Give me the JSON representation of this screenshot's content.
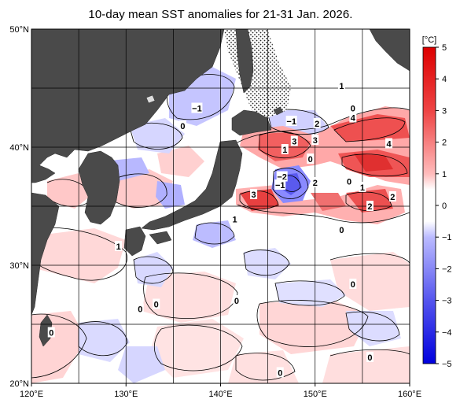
{
  "title": "10-day mean SST anomalies for 21-31 Jan. 2026.",
  "map": {
    "lon_range": [
      120,
      160
    ],
    "lat_range": [
      20,
      50
    ],
    "lon_ticks": [
      {
        "value": 120,
        "label": "120°E"
      },
      {
        "value": 130,
        "label": "130°E"
      },
      {
        "value": 140,
        "label": "140°E"
      },
      {
        "value": 150,
        "label": "150°E"
      },
      {
        "value": 160,
        "label": "160°E"
      }
    ],
    "lat_ticks": [
      {
        "value": 20,
        "label": "20°N"
      },
      {
        "value": 30,
        "label": "30°N"
      },
      {
        "value": 40,
        "label": "40°N"
      },
      {
        "value": 50,
        "label": "50°N"
      }
    ],
    "grid_lon_step": 5,
    "grid_lat_step": 5,
    "land_color": "#4a4a4a",
    "sea_ice_pattern": "dotted-hatch"
  },
  "colorbar": {
    "unit": "[°C]",
    "ticks": [
      {
        "value": 5,
        "label": "5"
      },
      {
        "value": 4,
        "label": "4"
      },
      {
        "value": 3,
        "label": "3"
      },
      {
        "value": 2,
        "label": "2"
      },
      {
        "value": 1,
        "label": "1"
      },
      {
        "value": 0,
        "label": "0"
      },
      {
        "value": -1,
        "label": "−1"
      },
      {
        "value": -2,
        "label": "−2"
      },
      {
        "value": -3,
        "label": "−3"
      },
      {
        "value": -4,
        "label": "−4"
      },
      {
        "value": -5,
        "label": "−5"
      }
    ],
    "stops": [
      {
        "value": 5,
        "color": "#dd0000"
      },
      {
        "value": 3,
        "color": "#ee4444"
      },
      {
        "value": 1,
        "color": "#ffbbbb"
      },
      {
        "value": 0.5,
        "color": "#ffffff"
      },
      {
        "value": -0.5,
        "color": "#ffffff"
      },
      {
        "value": -1,
        "color": "#bbbbff"
      },
      {
        "value": -3,
        "color": "#5555ee"
      },
      {
        "value": -5,
        "color": "#0000dd"
      }
    ]
  },
  "contour_labels": [
    {
      "text": "1",
      "lon": 152.8,
      "lat": 45.2
    },
    {
      "text": "0",
      "lon": 154.0,
      "lat": 43.3
    },
    {
      "text": "4",
      "lon": 154.0,
      "lat": 42.5
    },
    {
      "text": "2",
      "lon": 150.2,
      "lat": 42.0
    },
    {
      "text": "−1",
      "lon": 147.5,
      "lat": 42.2
    },
    {
      "text": "−1",
      "lon": 137.5,
      "lat": 43.3
    },
    {
      "text": "0",
      "lon": 136.0,
      "lat": 41.8
    },
    {
      "text": "3",
      "lon": 147.8,
      "lat": 40.5
    },
    {
      "text": "3",
      "lon": 150.0,
      "lat": 40.6
    },
    {
      "text": "1",
      "lon": 146.8,
      "lat": 39.8
    },
    {
      "text": "0",
      "lon": 149.5,
      "lat": 39.0
    },
    {
      "text": "4",
      "lon": 157.8,
      "lat": 40.3
    },
    {
      "text": "−2",
      "lon": 146.5,
      "lat": 37.5
    },
    {
      "text": "−1",
      "lon": 146.3,
      "lat": 36.8
    },
    {
      "text": "2",
      "lon": 150.0,
      "lat": 37.0
    },
    {
      "text": "0",
      "lon": 153.6,
      "lat": 37.1
    },
    {
      "text": "1",
      "lon": 155.0,
      "lat": 36.6
    },
    {
      "text": "3",
      "lon": 143.5,
      "lat": 36.0
    },
    {
      "text": "2",
      "lon": 158.2,
      "lat": 35.8
    },
    {
      "text": "2",
      "lon": 155.8,
      "lat": 35.0
    },
    {
      "text": "1",
      "lon": 141.5,
      "lat": 33.9
    },
    {
      "text": "0",
      "lon": 152.8,
      "lat": 33.0
    },
    {
      "text": "1",
      "lon": 129.2,
      "lat": 31.6
    },
    {
      "text": "0",
      "lon": 154.0,
      "lat": 28.4
    },
    {
      "text": "0",
      "lon": 141.7,
      "lat": 27.0
    },
    {
      "text": "0",
      "lon": 133.2,
      "lat": 26.7
    },
    {
      "text": "0",
      "lon": 131.5,
      "lat": 26.3
    },
    {
      "text": "0",
      "lon": 122.1,
      "lat": 24.3
    },
    {
      "text": "0",
      "lon": 155.8,
      "lat": 22.2
    },
    {
      "text": "0",
      "lon": 146.3,
      "lat": 20.9
    }
  ]
}
